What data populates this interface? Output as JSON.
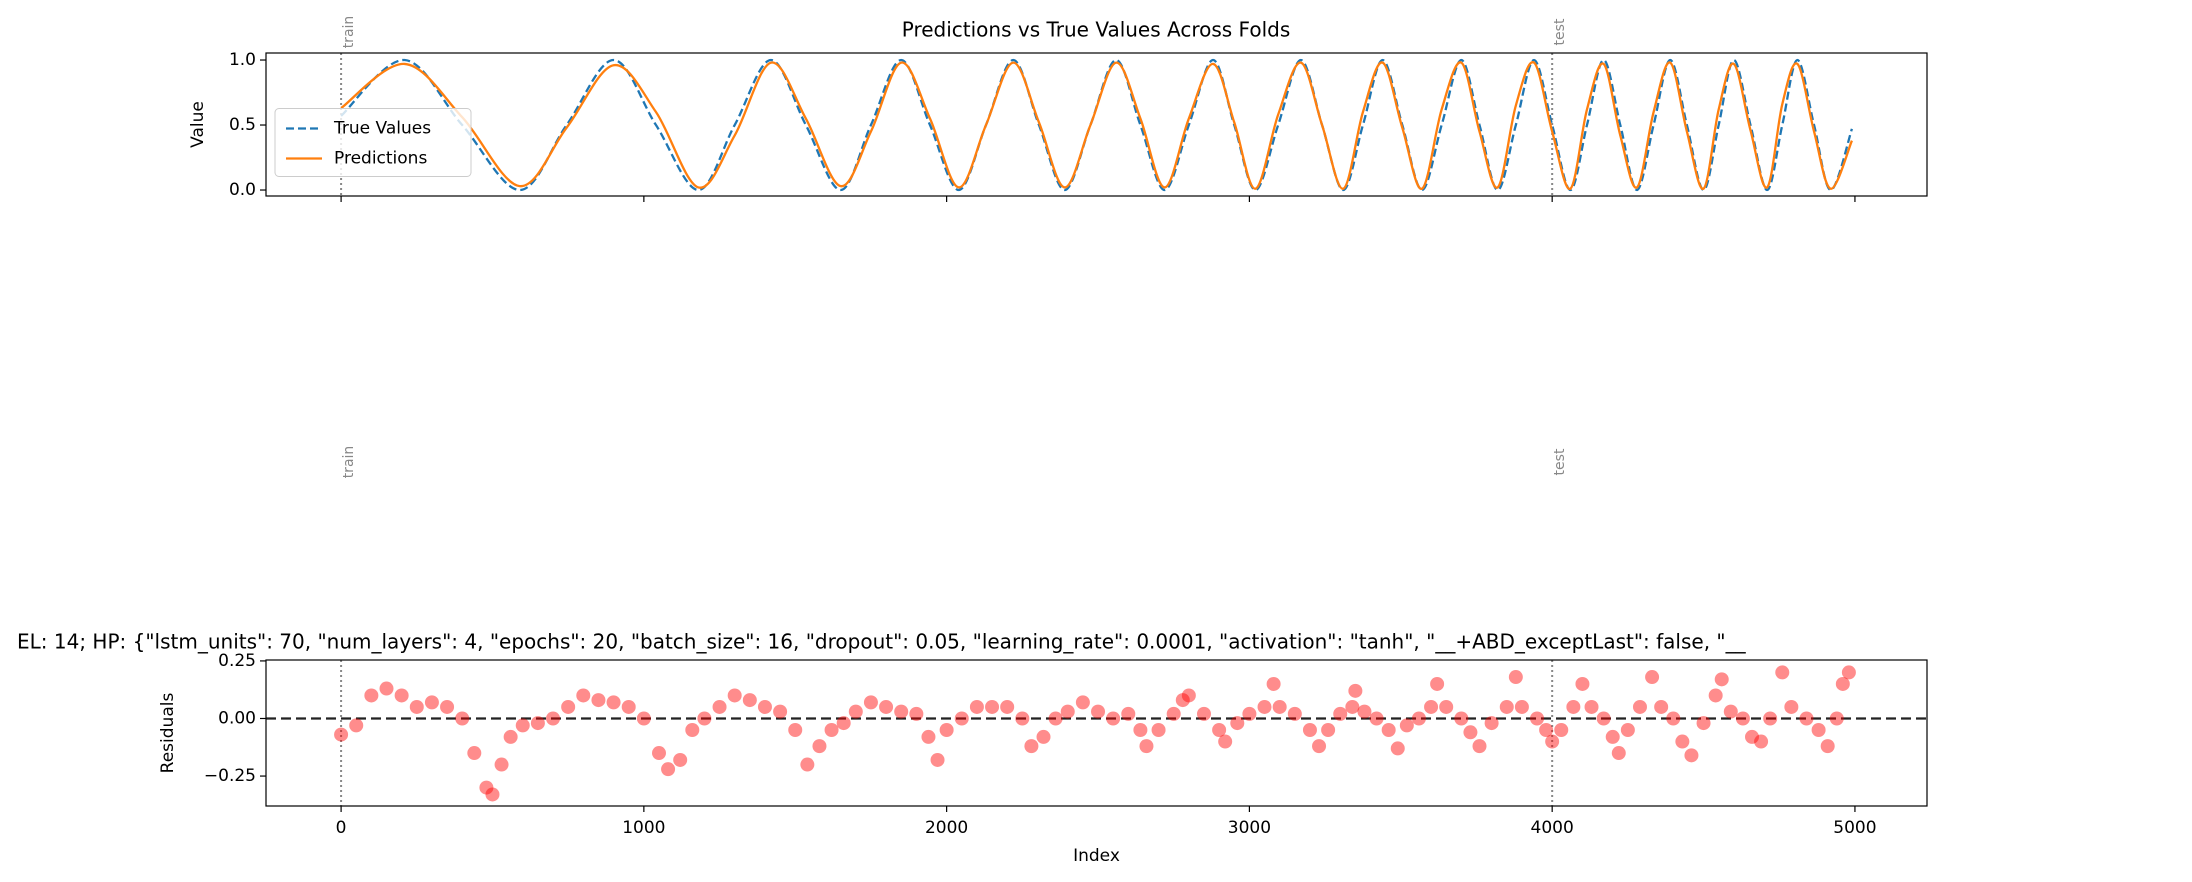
{
  "chart_data": [
    {
      "type": "line",
      "title": "Predictions vs True Values Across Folds",
      "ylabel": "Value",
      "x": [
        0,
        210,
        400,
        590,
        745,
        900,
        1040,
        1180,
        1300,
        1420,
        1535,
        1650,
        1750,
        1850,
        1945,
        2040,
        2130,
        2220,
        2305,
        2390,
        2475,
        2560,
        2640,
        2720,
        2800,
        2880,
        2950,
        3020,
        3095,
        3170,
        3240,
        3310,
        3375,
        3440,
        3505,
        3570,
        3635,
        3700,
        3760,
        3820,
        3880,
        3940,
        4000,
        4060,
        4115,
        4170,
        4225,
        4280,
        4335,
        4390,
        4445,
        4500,
        4550,
        4600,
        4655,
        4710,
        4760,
        4810,
        4865,
        4920,
        4990
      ],
      "series": [
        {
          "name": "True Values",
          "color": "#1f77b4",
          "linestyle": "dashed",
          "values": [
            0.57,
            1.0,
            0.5,
            0.0,
            0.5,
            1.0,
            0.5,
            0.0,
            0.5,
            1.0,
            0.5,
            0.0,
            0.5,
            1.0,
            0.5,
            0.0,
            0.5,
            1.0,
            0.5,
            0.0,
            0.5,
            1.0,
            0.5,
            0.0,
            0.5,
            1.0,
            0.5,
            0.0,
            0.5,
            1.0,
            0.5,
            0.0,
            0.5,
            1.0,
            0.5,
            0.0,
            0.5,
            1.0,
            0.5,
            0.0,
            0.5,
            1.0,
            0.5,
            0.0,
            0.5,
            1.0,
            0.5,
            0.0,
            0.5,
            1.0,
            0.5,
            0.0,
            0.5,
            1.0,
            0.5,
            0.0,
            0.5,
            1.0,
            0.5,
            0.0,
            0.47
          ]
        },
        {
          "name": "Predictions",
          "color": "#ff7f0e",
          "linestyle": "solid",
          "values": [
            0.63,
            0.97,
            0.56,
            0.03,
            0.48,
            0.96,
            0.6,
            0.02,
            0.42,
            0.98,
            0.55,
            0.03,
            0.45,
            0.98,
            0.55,
            0.02,
            0.5,
            0.98,
            0.52,
            0.02,
            0.5,
            0.98,
            0.55,
            0.02,
            0.55,
            0.97,
            0.52,
            0.01,
            0.58,
            0.98,
            0.5,
            0.01,
            0.6,
            0.98,
            0.48,
            0.01,
            0.62,
            0.98,
            0.45,
            0.02,
            0.65,
            0.98,
            0.45,
            0.01,
            0.62,
            0.97,
            0.42,
            0.02,
            0.6,
            0.98,
            0.45,
            0.01,
            0.62,
            0.97,
            0.46,
            0.02,
            0.66,
            0.97,
            0.45,
            0.01,
            0.38
          ]
        }
      ],
      "xlim": [
        -248,
        5238
      ],
      "ylim": [
        -0.046,
        1.054
      ],
      "xticks": [
        0,
        1000,
        2000,
        3000,
        4000,
        5000
      ],
      "yticks": [
        {
          "value": 0,
          "label": "0.0"
        },
        {
          "value": 0.5,
          "label": "0.5"
        },
        {
          "value": 1,
          "label": "1.0"
        }
      ],
      "legend": "center left",
      "fold_markers": [
        {
          "x": 0,
          "label": "train"
        },
        {
          "x": 4000,
          "label": "test"
        }
      ]
    },
    {
      "type": "scatter",
      "title": "EL: 14; HP: {\"lstm_units\": 70, \"num_layers\": 4, \"epochs\": 20, \"batch_size\": 16, \"dropout\": 0.05, \"learning_rate\": 0.0001, \"activation\": \"tanh\", \"__+ABD_exceptLast\": false, \"__",
      "xlabel": "Index",
      "ylabel": "Residuals",
      "color": "#ff0000",
      "x": [
        0,
        50,
        100,
        150,
        200,
        250,
        300,
        350,
        400,
        440,
        480,
        500,
        530,
        560,
        600,
        650,
        700,
        750,
        800,
        850,
        900,
        950,
        1000,
        1050,
        1080,
        1120,
        1160,
        1200,
        1250,
        1300,
        1350,
        1400,
        1450,
        1500,
        1540,
        1580,
        1620,
        1660,
        1700,
        1750,
        1800,
        1850,
        1900,
        1940,
        1970,
        2000,
        2050,
        2100,
        2150,
        2200,
        2250,
        2280,
        2320,
        2360,
        2400,
        2450,
        2500,
        2550,
        2600,
        2640,
        2660,
        2700,
        2750,
        2780,
        2800,
        2850,
        2900,
        2920,
        2960,
        3000,
        3050,
        3080,
        3100,
        3150,
        3200,
        3230,
        3260,
        3300,
        3340,
        3350,
        3380,
        3420,
        3460,
        3490,
        3520,
        3560,
        3600,
        3620,
        3650,
        3700,
        3730,
        3760,
        3800,
        3850,
        3880,
        3900,
        3950,
        3980,
        4000,
        4030,
        4070,
        4100,
        4130,
        4170,
        4200,
        4220,
        4250,
        4290,
        4330,
        4360,
        4400,
        4430,
        4460,
        4500,
        4540,
        4560,
        4590,
        4630,
        4660,
        4690,
        4720,
        4760,
        4790,
        4840,
        4880,
        4910,
        4940,
        4960,
        4980
      ],
      "values": [
        -0.07,
        -0.03,
        0.1,
        0.13,
        0.1,
        0.05,
        0.07,
        0.05,
        0.0,
        -0.15,
        -0.3,
        -0.33,
        -0.2,
        -0.08,
        -0.03,
        -0.02,
        0.0,
        0.05,
        0.1,
        0.08,
        0.07,
        0.05,
        0.0,
        -0.15,
        -0.22,
        -0.18,
        -0.05,
        0.0,
        0.05,
        0.1,
        0.08,
        0.05,
        0.03,
        -0.05,
        -0.2,
        -0.12,
        -0.05,
        -0.02,
        0.03,
        0.07,
        0.05,
        0.03,
        0.02,
        -0.08,
        -0.18,
        -0.05,
        0.0,
        0.05,
        0.05,
        0.05,
        0.0,
        -0.12,
        -0.08,
        0.0,
        0.03,
        0.07,
        0.03,
        0.0,
        0.02,
        -0.05,
        -0.12,
        -0.05,
        0.02,
        0.08,
        0.1,
        0.02,
        -0.05,
        -0.1,
        -0.02,
        0.02,
        0.05,
        0.15,
        0.05,
        0.02,
        -0.05,
        -0.12,
        -0.05,
        0.02,
        0.05,
        0.12,
        0.03,
        0.0,
        -0.05,
        -0.13,
        -0.03,
        0.0,
        0.05,
        0.15,
        0.05,
        0.0,
        -0.06,
        -0.12,
        -0.02,
        0.05,
        0.18,
        0.05,
        0.0,
        -0.05,
        -0.1,
        -0.05,
        0.05,
        0.15,
        0.05,
        0.0,
        -0.08,
        -0.15,
        -0.05,
        0.05,
        0.18,
        0.05,
        0.0,
        -0.1,
        -0.16,
        -0.02,
        0.1,
        0.17,
        0.03,
        0.0,
        -0.08,
        -0.1,
        0.0,
        0.2,
        0.05,
        0.0,
        -0.05,
        -0.12,
        0.0,
        0.15,
        0.2
      ],
      "xlim": [
        -248,
        5238
      ],
      "ylim": [
        -0.38,
        0.254
      ],
      "xticks": [
        0,
        1000,
        2000,
        3000,
        4000,
        5000
      ],
      "yticks": [
        {
          "value": 0.25,
          "label": "0.25"
        },
        {
          "value": 0,
          "label": "0.00"
        },
        {
          "value": -0.25,
          "label": "−0.25"
        }
      ],
      "hline": 0,
      "fold_markers": [
        {
          "x": 0,
          "label": "train"
        },
        {
          "x": 4000,
          "label": "test"
        }
      ]
    }
  ]
}
